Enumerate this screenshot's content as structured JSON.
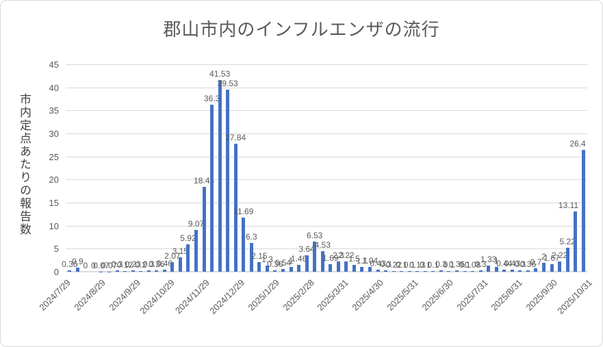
{
  "window": {
    "background": "#ffffff",
    "border_color": "#d9d9d9"
  },
  "chart_data": {
    "type": "bar",
    "title": "郡山市内のインフルエンザの流行",
    "ylabel": "市内定点あたりの報告数",
    "xlabel": "",
    "ylim": [
      0,
      45
    ],
    "yticks": [
      0,
      5,
      10,
      15,
      20,
      25,
      30,
      35,
      40,
      45
    ],
    "grid": "horizontal",
    "legend": "none",
    "bar_color": "#4472C4",
    "gridline_color": "#d9d9d9",
    "label_color": "#595959",
    "x_tick_labels": [
      "2024/7/29",
      "2024/8/29",
      "2024/9/29",
      "2024/10/29",
      "2024/11/29",
      "2024/12/29",
      "2025/1/29",
      "2025/2/28",
      "2025/3/31",
      "2025/4/30",
      "2025/5/31",
      "2025/6/30",
      "2025/7/31",
      "2025/8/31",
      "2025/9/30",
      "2025/10/31"
    ],
    "values": [
      0.36,
      0.9,
      0,
      0,
      0.07,
      0.07,
      0.3,
      0.12,
      0.23,
      0.2,
      0.3,
      0.36,
      0.46,
      2.07,
      3.15,
      5.92,
      9.07,
      18.46,
      36.3,
      41.53,
      39.53,
      27.84,
      11.69,
      6.3,
      2.15,
      1.3,
      0.36,
      0.54,
      1,
      1.46,
      3.64,
      6.53,
      4.53,
      1.69,
      2.3,
      2.22,
      1.5,
      1.1,
      1.04,
      0.43,
      0.3,
      0.22,
      0.1,
      0.1,
      0.13,
      0.1,
      0.1,
      0.3,
      0.1,
      0.36,
      0.1,
      0.08,
      0.3,
      1.33,
      1,
      0.44,
      0.43,
      0.3,
      0.36,
      0.7,
      2,
      1.67,
      2.22,
      5.22,
      13.11,
      26.4
    ],
    "data_labels": [
      "0.36",
      "0.9",
      "0",
      "0",
      "0.07",
      "0.07",
      "0.3",
      "0.12",
      "0.23",
      "0.2",
      "0.3",
      "0.36",
      "0.46",
      "2.07",
      "3.15",
      "5.92",
      "9.07",
      "18.46",
      "36.3",
      "41.53",
      "39.53",
      "27.84",
      "11.69",
      "6.3",
      "2.15",
      "1.3",
      "0.36",
      "0.54",
      "1",
      "1.46",
      "3.64",
      "6.53",
      "4.53",
      "1.69",
      "2.3",
      "2.22",
      "1.5",
      "1.1",
      "1.04",
      "0.43",
      "0.3",
      "0.22",
      "0.1",
      "0.1",
      "0.13",
      "0.1",
      "0.1",
      "0.3",
      "0.1",
      "0.36",
      "0.1",
      "0.08",
      "0.3",
      "1.33",
      "1",
      "0.44",
      "0.43",
      "0.3",
      "0.36",
      "0.7",
      "2",
      "1.67",
      "2.22",
      "5.22",
      "13.11",
      "26.4"
    ]
  }
}
